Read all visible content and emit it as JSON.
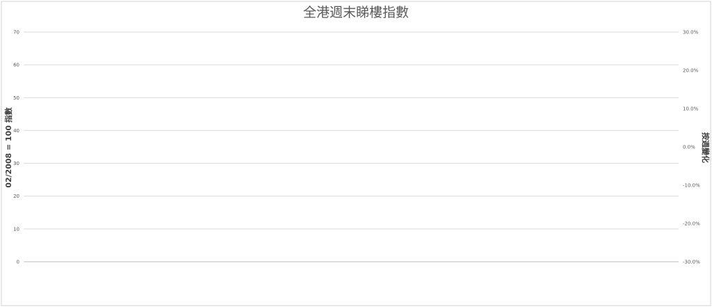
{
  "chart_data": {
    "type": "bar",
    "title": "全港週末睇樓指數",
    "ylabel": "02/2008 = 100 指數",
    "y2label": "按週變化",
    "ylim": [
      0,
      70
    ],
    "yticks": [
      "0",
      "10",
      "20",
      "30",
      "40",
      "50",
      "60",
      "70"
    ],
    "y2lim": [
      -0.3,
      0.3
    ],
    "y2ticks": [
      "-30.0%",
      "-20.0%",
      "-10.0%",
      "0.0%",
      "10.0%",
      "20.0%",
      "30.0%"
    ],
    "grid": true,
    "categories": [],
    "series": [
      {
        "name": "",
        "type": "bar",
        "color": "#4f81bd",
        "values": []
      },
      {
        "name": "",
        "type": "line",
        "axis": "right",
        "color": "#c0504d",
        "values": []
      }
    ],
    "bar_labels": []
  }
}
